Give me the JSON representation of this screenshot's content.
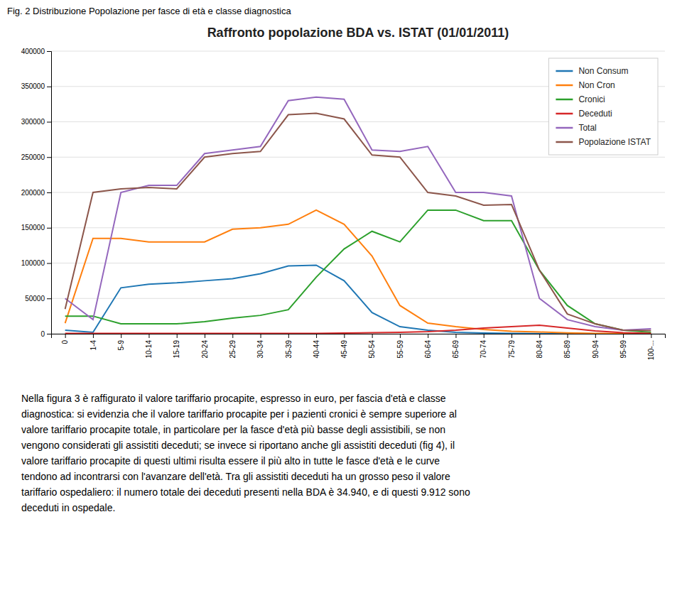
{
  "chart_data": {
    "type": "line",
    "title": "Raffronto popolazione BDA vs. ISTAT (01/01/2011)",
    "annotations": [
      "Fig. 2 Distribuzione Popolazione per fasce di età e classe diagnostica",
      "Nella figura 3 è raffigurato il valore tariffario procapite, espresso in euro, per fascia d'età e classe\ndiagnostica: si evidenzia che il valore tariffario procapite per i pazienti cronici è sempre superiore al\nvalore tariffario procapite totale, in particolare per la fasce d'età più basse degli assistibili, se non\nvengono considerati gli assistiti deceduti; se invece si riportano anche gli assistiti deceduti (fig 4), il\nvalore tariffario procapite di questi ultimi risulta essere il più alto in tutte le fasce d'età e le curve\ntendono ad incontrarsi con l'avanzare dell'età. Tra gli assistiti deceduti ha un grosso peso il valore\ntariffario ospedaliero: il numero totale dei deceduti presenti nella BDA è 34.940, e di questi 9.912 sono\ndeceduti in ospedale."
    ],
    "categories": [
      "0",
      "1-4",
      "5-9",
      "10-14",
      "15-19",
      "20-24",
      "25-29",
      "30-34",
      "35-39",
      "40-44",
      "45-49",
      "50-54",
      "55-59",
      "60-64",
      "65-69",
      "70-74",
      "75-79",
      "80-84",
      "85-89",
      "90-94",
      "95-99",
      "100-..."
    ],
    "series": [
      {
        "name": "Non Consum",
        "values": [
          5000,
          2000,
          65000,
          70000,
          72000,
          75000,
          78000,
          85000,
          96000,
          97000,
          75000,
          30000,
          10000,
          5000,
          2000,
          1000,
          500,
          200,
          100,
          50,
          10,
          5
        ]
      },
      {
        "name": "Non Cron",
        "values": [
          15000,
          135000,
          135000,
          130000,
          130000,
          130000,
          148000,
          150000,
          155000,
          175000,
          155000,
          110000,
          40000,
          15000,
          10000,
          6000,
          3500,
          2500,
          1200,
          500,
          200,
          100
        ]
      },
      {
        "name": "Cronici",
        "values": [
          25000,
          25000,
          14000,
          14000,
          14000,
          17000,
          22000,
          26000,
          34000,
          80000,
          120000,
          145000,
          130000,
          175000,
          175000,
          160000,
          160000,
          90000,
          40000,
          14000,
          5000,
          2000
        ]
      },
      {
        "name": "Deceduti",
        "values": [
          400,
          400,
          400,
          400,
          400,
          400,
          400,
          400,
          500,
          600,
          1000,
          1500,
          2000,
          3000,
          5000,
          8000,
          10000,
          12000,
          8000,
          4000,
          1500,
          500
        ]
      },
      {
        "name": "Total",
        "values": [
          50000,
          20000,
          200000,
          210000,
          210000,
          255000,
          260000,
          265000,
          330000,
          335000,
          332000,
          260000,
          258000,
          265000,
          200000,
          200000,
          195000,
          50000,
          20000,
          10000,
          5000,
          7000
        ]
      },
      {
        "name": "Popolazione ISTAT",
        "values": [
          35000,
          200000,
          205000,
          207000,
          205000,
          250000,
          255000,
          258000,
          310000,
          312000,
          304000,
          253000,
          250000,
          200000,
          195000,
          182000,
          183000,
          90000,
          28000,
          14000,
          5000,
          4500
        ]
      }
    ],
    "ylim": [
      0,
      400000
    ],
    "yticks": [
      0,
      50000,
      100000,
      150000,
      200000,
      250000,
      300000,
      350000,
      400000
    ],
    "grid": true,
    "legend": "upper right"
  }
}
